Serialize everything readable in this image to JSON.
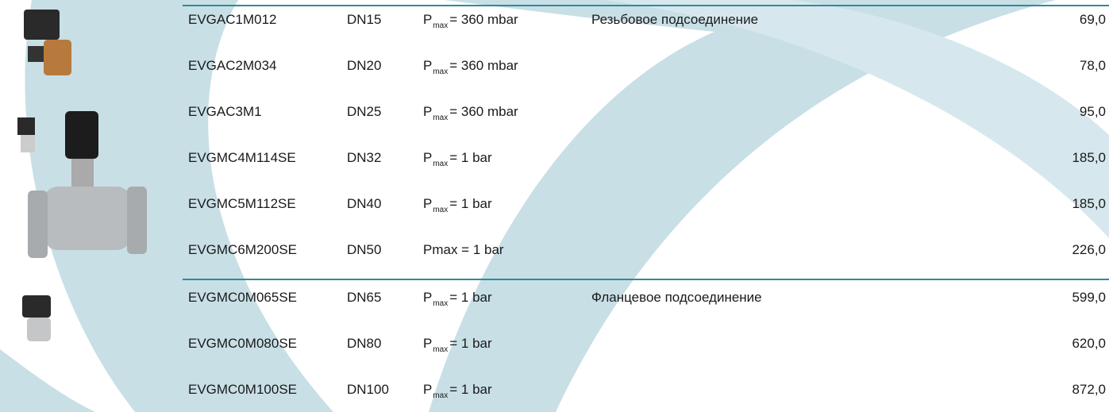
{
  "table": {
    "groups": [
      {
        "connection": "Резьбовое подсоединение",
        "rows": [
          {
            "code": "EVGAC1M012",
            "dn": "DN15",
            "pressure": {
              "symbol": "P",
              "sub": "max",
              "rest": "= 360 mbar"
            },
            "price": "69,0"
          },
          {
            "code": "EVGAC2M034",
            "dn": "DN20",
            "pressure": {
              "symbol": "P",
              "sub": "max",
              "rest": "= 360 mbar"
            },
            "price": "78,0"
          },
          {
            "code": "EVGAC3M1",
            "dn": "DN25",
            "pressure": {
              "symbol": "P",
              "sub": "max",
              "rest": "= 360 mbar"
            },
            "price": "95,0"
          },
          {
            "code": "EVGMC4M114SE",
            "dn": "DN32",
            "pressure": {
              "symbol": "P",
              "sub": "max",
              "rest": "= 1 bar"
            },
            "price": "185,0"
          },
          {
            "code": "EVGMC5M112SE",
            "dn": "DN40",
            "pressure": {
              "symbol": "P",
              "sub": "max",
              "rest": "= 1 bar"
            },
            "price": "185,0"
          },
          {
            "code": "EVGMC6M200SE",
            "dn": "DN50",
            "pressure": {
              "text": "Pmax = 1 bar"
            },
            "price": "226,0"
          }
        ]
      },
      {
        "connection": "Фланцевое подсоединение",
        "rows": [
          {
            "code": "EVGMC0M065SE",
            "dn": "DN65",
            "pressure": {
              "symbol": "P",
              "sub": "max",
              "rest": "= 1 bar"
            },
            "price": "599,0"
          },
          {
            "code": "EVGMC0M080SE",
            "dn": "DN80",
            "pressure": {
              "symbol": "P",
              "sub": "max",
              "rest": "= 1 bar"
            },
            "price": "620,0"
          },
          {
            "code": "EVGMC0M100SE",
            "dn": "DN100",
            "pressure": {
              "symbol": "P",
              "sub": "max",
              "rest": "= 1 bar"
            },
            "price": "872,0"
          }
        ]
      }
    ]
  }
}
